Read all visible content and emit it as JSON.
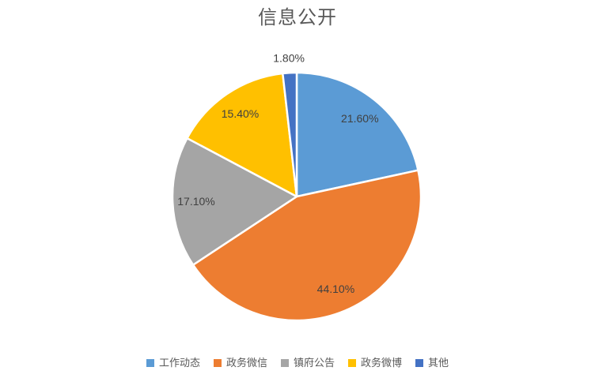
{
  "chart_data": {
    "type": "pie",
    "title": "信息公开",
    "legend_position": "bottom",
    "start_angle_deg": 0,
    "direction": "clockwise",
    "background": "#FFFFFF",
    "title_color": "#595959",
    "label_color": "#404040",
    "legend_text_color": "#595959",
    "outside_label_threshold_pct": 3,
    "series": [
      {
        "name": "工作动态",
        "value": 21.6,
        "label": "21.60%",
        "color": "#5B9BD5"
      },
      {
        "name": "政务微信",
        "value": 44.1,
        "label": "44.10%",
        "color": "#ED7D31"
      },
      {
        "name": "镇府公告",
        "value": 17.1,
        "label": "17.10%",
        "color": "#A5A5A5"
      },
      {
        "name": "政务微博",
        "value": 15.4,
        "label": "15.40%",
        "color": "#FFC000"
      },
      {
        "name": "其他",
        "value": 1.8,
        "label": "1.80%",
        "color": "#4472C4"
      }
    ]
  }
}
